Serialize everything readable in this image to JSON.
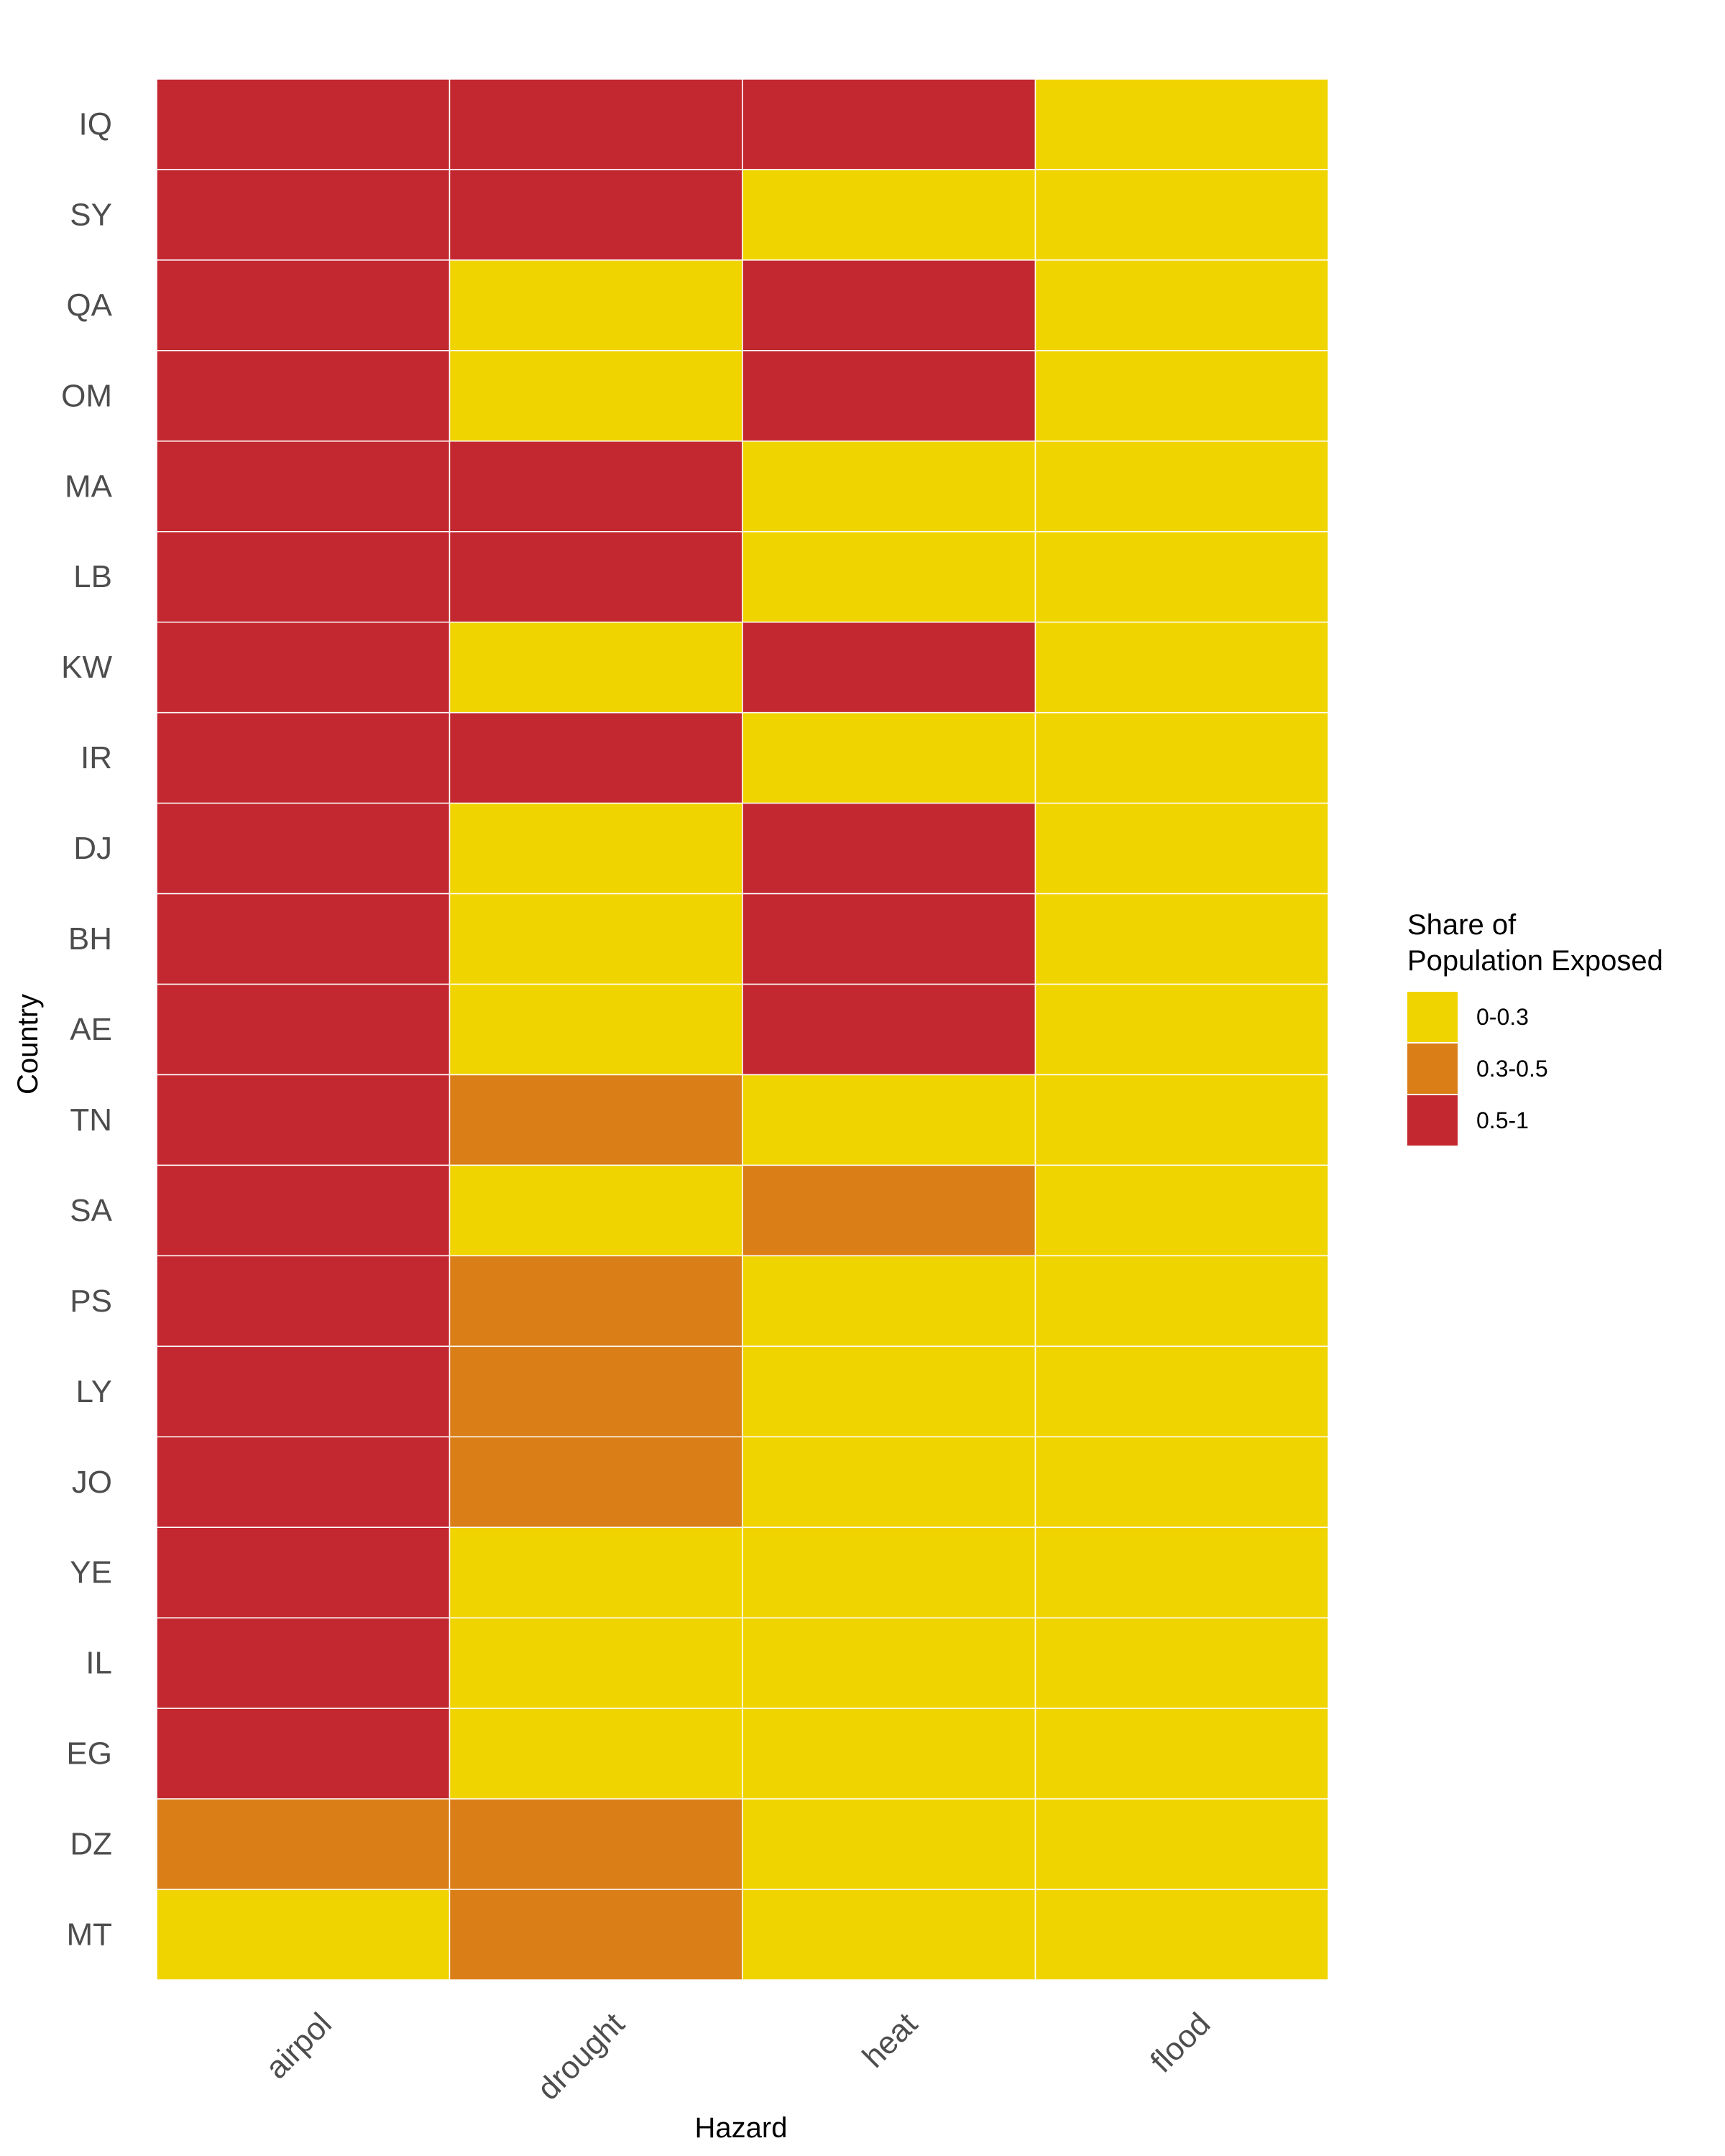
{
  "chart_data": {
    "type": "heatmap",
    "xlabel": "Hazard",
    "ylabel": "Country",
    "x_categories": [
      "airpol",
      "drought",
      "heat",
      "flood"
    ],
    "y_categories": [
      "IQ",
      "SY",
      "QA",
      "OM",
      "MA",
      "LB",
      "KW",
      "IR",
      "DJ",
      "BH",
      "AE",
      "TN",
      "SA",
      "PS",
      "LY",
      "JO",
      "YE",
      "IL",
      "EG",
      "DZ",
      "MT"
    ],
    "values": [
      [
        "0.5-1",
        "0.5-1",
        "0.5-1",
        "0-0.3"
      ],
      [
        "0.5-1",
        "0.5-1",
        "0-0.3",
        "0-0.3"
      ],
      [
        "0.5-1",
        "0-0.3",
        "0.5-1",
        "0-0.3"
      ],
      [
        "0.5-1",
        "0-0.3",
        "0.5-1",
        "0-0.3"
      ],
      [
        "0.5-1",
        "0.5-1",
        "0-0.3",
        "0-0.3"
      ],
      [
        "0.5-1",
        "0.5-1",
        "0-0.3",
        "0-0.3"
      ],
      [
        "0.5-1",
        "0-0.3",
        "0.5-1",
        "0-0.3"
      ],
      [
        "0.5-1",
        "0.5-1",
        "0-0.3",
        "0-0.3"
      ],
      [
        "0.5-1",
        "0-0.3",
        "0.5-1",
        "0-0.3"
      ],
      [
        "0.5-1",
        "0-0.3",
        "0.5-1",
        "0-0.3"
      ],
      [
        "0.5-1",
        "0-0.3",
        "0.5-1",
        "0-0.3"
      ],
      [
        "0.5-1",
        "0.3-0.5",
        "0-0.3",
        "0-0.3"
      ],
      [
        "0.5-1",
        "0-0.3",
        "0.3-0.5",
        "0-0.3"
      ],
      [
        "0.5-1",
        "0.3-0.5",
        "0-0.3",
        "0-0.3"
      ],
      [
        "0.5-1",
        "0.3-0.5",
        "0-0.3",
        "0-0.3"
      ],
      [
        "0.5-1",
        "0.3-0.5",
        "0-0.3",
        "0-0.3"
      ],
      [
        "0.5-1",
        "0-0.3",
        "0-0.3",
        "0-0.3"
      ],
      [
        "0.5-1",
        "0-0.3",
        "0-0.3",
        "0-0.3"
      ],
      [
        "0.5-1",
        "0-0.3",
        "0-0.3",
        "0-0.3"
      ],
      [
        "0.3-0.5",
        "0.3-0.5",
        "0-0.3",
        "0-0.3"
      ],
      [
        "0-0.3",
        "0.3-0.5",
        "0-0.3",
        "0-0.3"
      ]
    ],
    "legend": {
      "title_lines": [
        "Share of",
        "Population Exposed"
      ],
      "position": "right",
      "entries": [
        {
          "label": "0-0.3",
          "color": "#f0d400"
        },
        {
          "label": "0.3-0.5",
          "color": "#da7e18"
        },
        {
          "label": "0.5-1",
          "color": "#c32830"
        }
      ]
    },
    "cell_border_color": "#ffffff",
    "grid": false
  }
}
